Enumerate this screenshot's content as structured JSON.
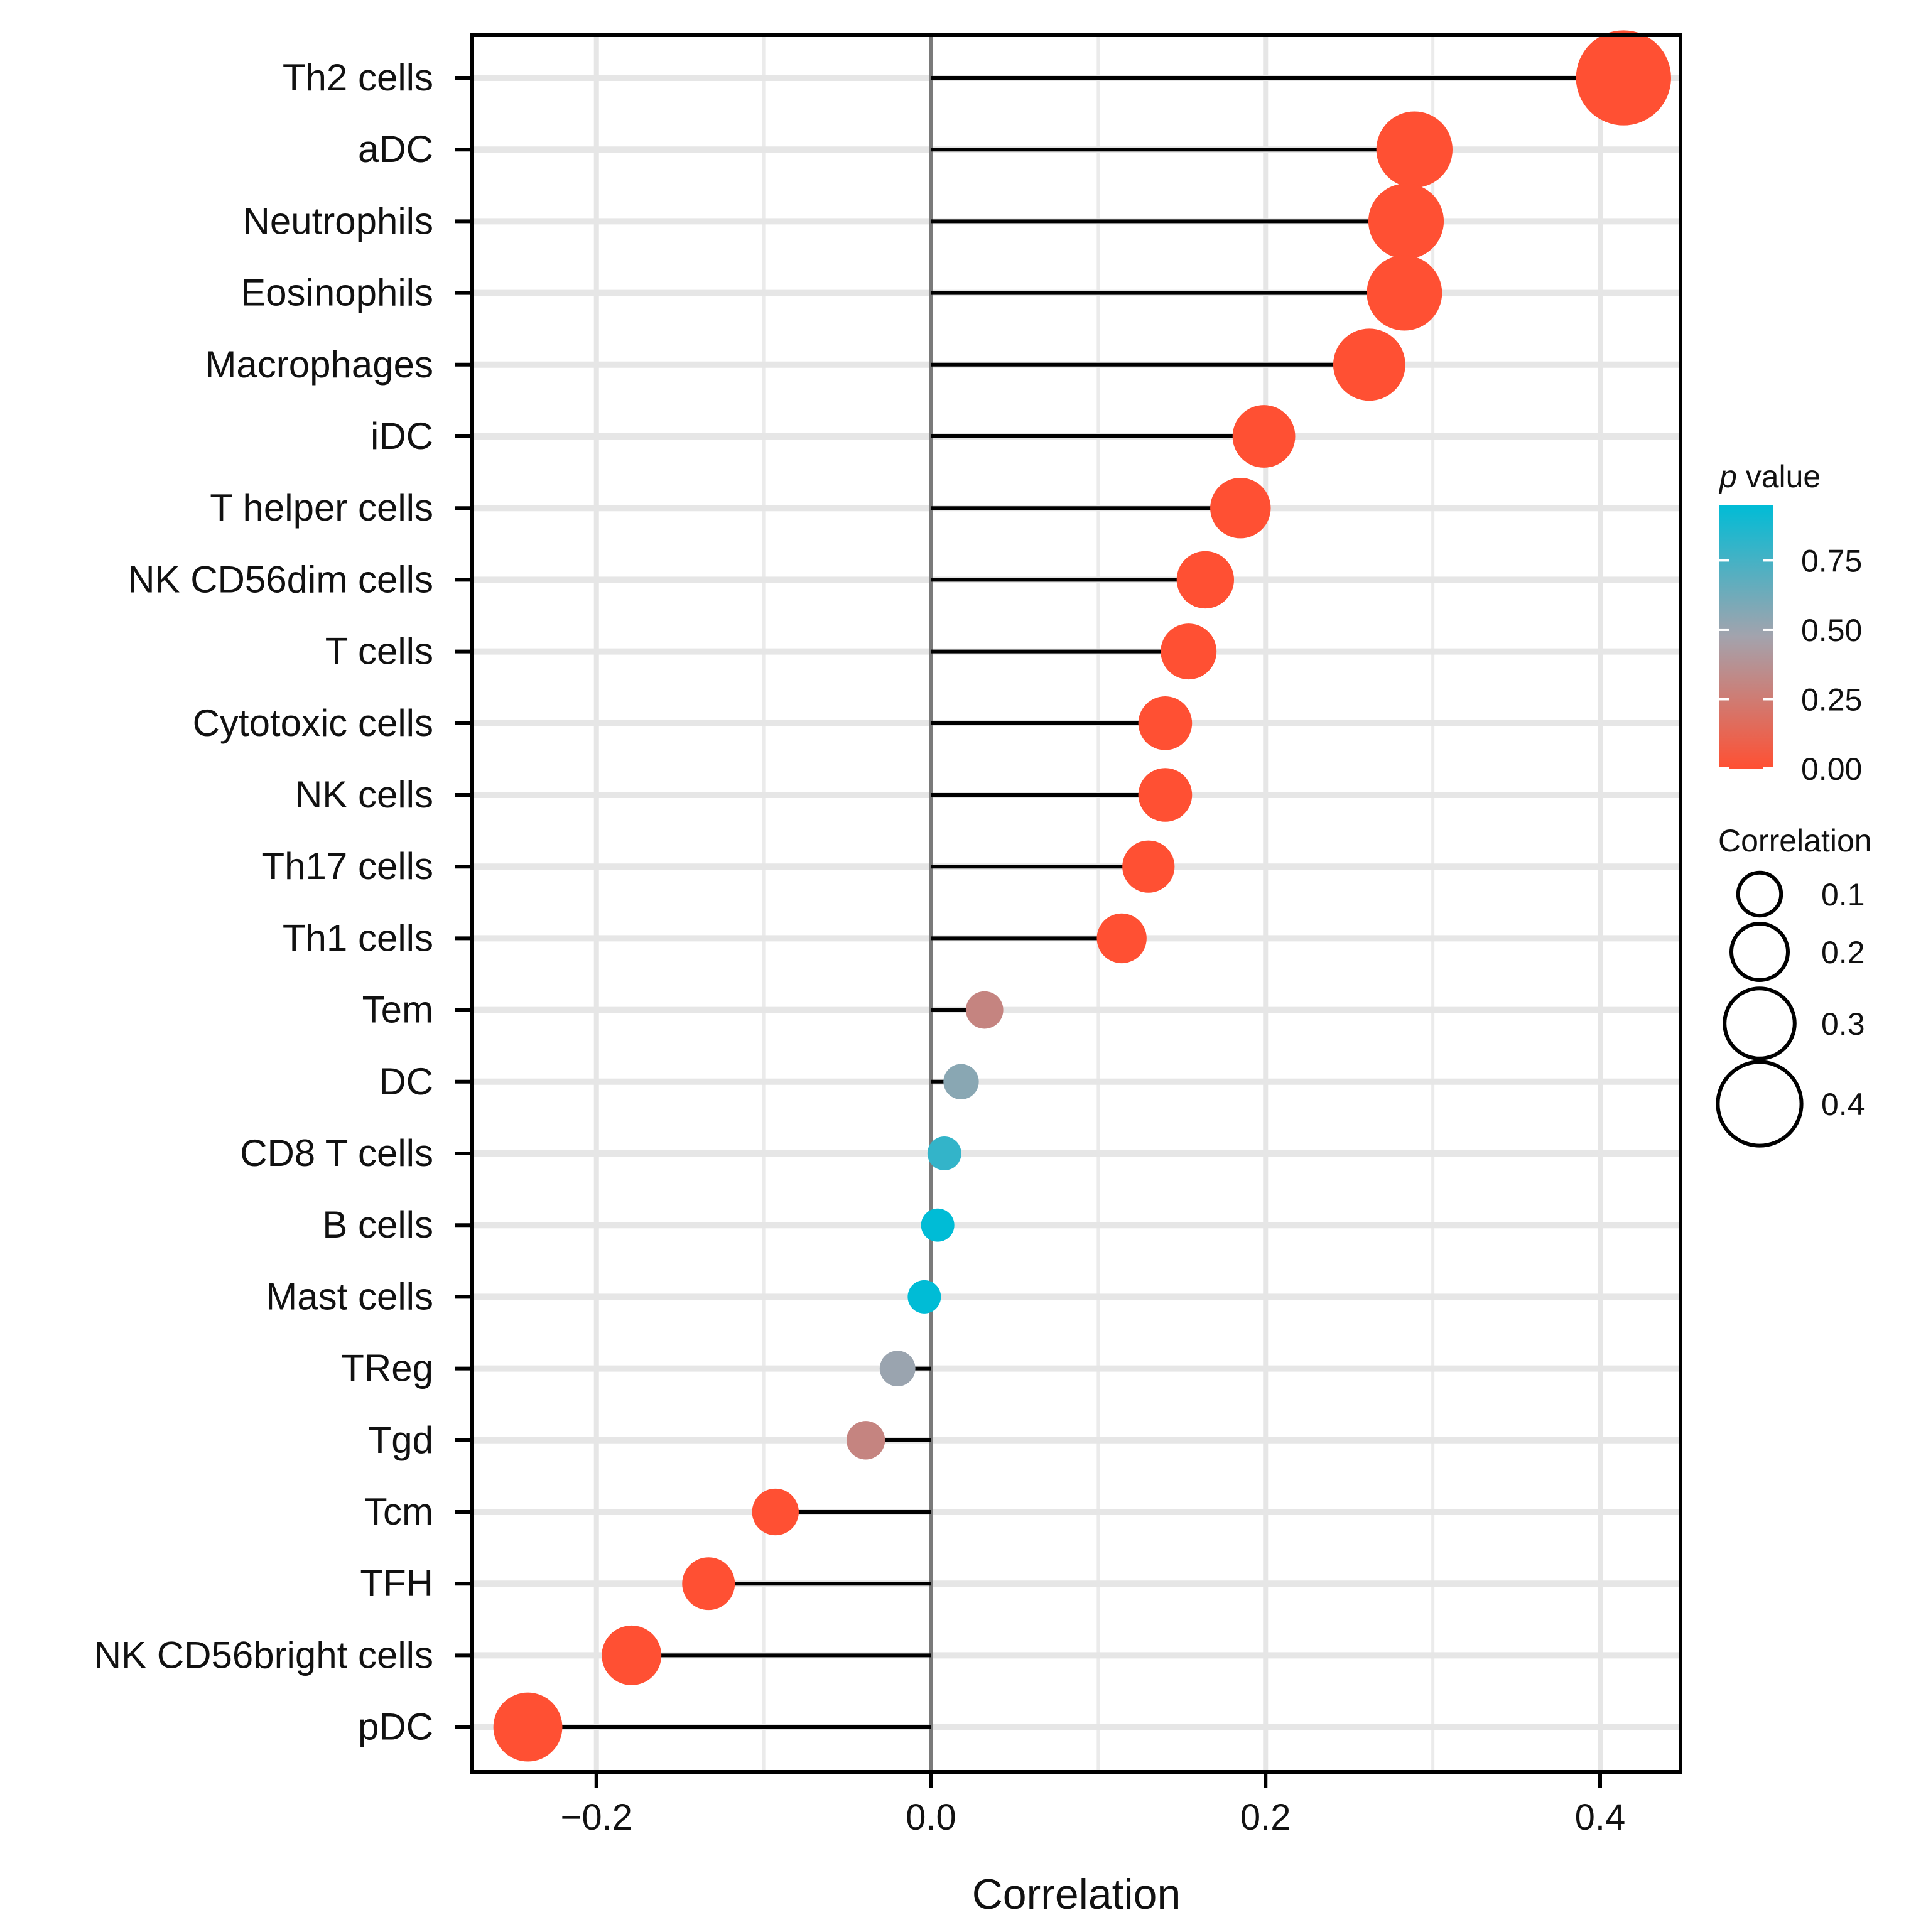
{
  "chart_data": {
    "type": "lollipop",
    "title": "",
    "xlabel": "Correlation",
    "ylabel": "",
    "xlim": [
      -0.275,
      0.45
    ],
    "x_ticks": [
      -0.2,
      0.0,
      0.2,
      0.4
    ],
    "x_tick_labels": [
      "−0.2",
      "0.0",
      "0.2",
      "0.4"
    ],
    "grid": true,
    "categories": [
      "Th2 cells",
      "aDC",
      "Neutrophils",
      "Eosinophils",
      "Macrophages",
      "iDC",
      "T helper cells",
      "NK CD56dim cells",
      "T cells",
      "Cytotoxic cells",
      "NK cells",
      "Th17 cells",
      "Th1 cells",
      "Tem",
      "DC",
      "CD8 T cells",
      "B cells",
      "Mast cells",
      "TReg",
      "Tgd",
      "Tcm",
      "TFH",
      "NK CD56bright cells",
      "pDC"
    ],
    "correlation": [
      0.414,
      0.289,
      0.284,
      0.283,
      0.262,
      0.199,
      0.185,
      0.164,
      0.154,
      0.14,
      0.14,
      0.13,
      0.114,
      0.032,
      0.018,
      0.008,
      0.004,
      -0.004,
      -0.02,
      -0.039,
      -0.093,
      -0.133,
      -0.179,
      -0.241
    ],
    "p_value": [
      0.0,
      0.0,
      0.0,
      0.0,
      0.0,
      0.0,
      0.0,
      0.0,
      0.0,
      0.0,
      0.0,
      0.0,
      0.0,
      0.3,
      0.55,
      0.8,
      0.95,
      0.95,
      0.5,
      0.3,
      0.0,
      0.0,
      0.0,
      0.0
    ],
    "legend": {
      "color_title_italic": "p",
      "color_title_rest": " value",
      "color_ticks": [
        0.0,
        0.25,
        0.5,
        0.75
      ],
      "color_tick_labels": [
        "0.00",
        "0.25",
        "0.50",
        "0.75"
      ],
      "color_range": [
        0.0,
        0.95
      ],
      "color_low": "#ff5033",
      "color_mid": "#a3a3ad",
      "color_high": "#00bcd6",
      "size_title": "Correlation",
      "size_values": [
        0.1,
        0.2,
        0.3,
        0.4
      ],
      "size_labels": [
        "0.1",
        "0.2",
        "0.3",
        "0.4"
      ],
      "placement": "right"
    }
  }
}
